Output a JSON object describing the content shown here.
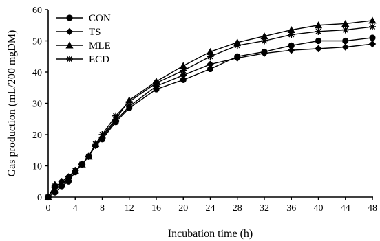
{
  "chart_data": {
    "type": "line",
    "xlabel": "Incubation time (h)",
    "ylabel": "Gas production (mL/200 mgDM)",
    "xlim": [
      0,
      48
    ],
    "ylim": [
      0,
      60
    ],
    "x_ticks": [
      0,
      4,
      8,
      12,
      16,
      20,
      24,
      28,
      32,
      36,
      40,
      44,
      48
    ],
    "y_ticks": [
      0,
      10,
      20,
      30,
      40,
      50,
      60
    ],
    "grid": false,
    "legend_position": "top-left",
    "x": [
      0,
      1,
      2,
      3,
      4,
      5,
      6,
      7,
      8,
      10,
      12,
      16,
      20,
      24,
      28,
      32,
      36,
      40,
      44,
      48
    ],
    "series": [
      {
        "name": "CON",
        "marker": "circle",
        "values": [
          0,
          1.5,
          3.5,
          5.0,
          8.0,
          10.5,
          13.0,
          16.5,
          18.5,
          24.0,
          28.5,
          34.5,
          37.5,
          41.0,
          45.0,
          46.5,
          48.5,
          50.0,
          50.0,
          51.0
        ]
      },
      {
        "name": "TS",
        "marker": "diamond",
        "values": [
          0,
          3.0,
          5.0,
          6.5,
          8.5,
          10.5,
          13.0,
          16.5,
          19.0,
          24.5,
          29.0,
          35.5,
          39.0,
          42.5,
          44.5,
          46.0,
          47.0,
          47.5,
          48.0,
          49.0
        ]
      },
      {
        "name": "MLE",
        "marker": "triangle",
        "values": [
          0,
          4.0,
          4.0,
          6.0,
          8.5,
          10.5,
          13.0,
          17.0,
          19.5,
          25.0,
          31.0,
          37.0,
          42.0,
          46.5,
          49.5,
          51.5,
          53.5,
          55.0,
          55.5,
          56.5
        ]
      },
      {
        "name": "ECD",
        "marker": "star",
        "values": [
          0,
          3.5,
          4.5,
          6.0,
          8.5,
          10.5,
          13.0,
          17.0,
          20.0,
          26.0,
          30.5,
          36.5,
          40.5,
          45.0,
          48.5,
          50.0,
          52.0,
          53.0,
          53.5,
          54.5
        ]
      }
    ]
  }
}
